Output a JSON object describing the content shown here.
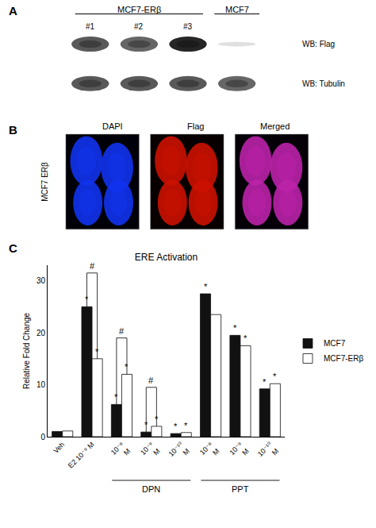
{
  "chart_data": {
    "type": "bar",
    "title": "ERE Activation",
    "ylabel": "Relative Fold Change",
    "categories": [
      "Veh",
      "E2 10⁻⁹ M",
      "10⁻⁸\nM",
      "10⁻⁹\nM",
      "10⁻¹⁰\nM",
      "10⁻⁸\nM",
      "10⁻⁹\nM",
      "10⁻¹⁰\nM"
    ],
    "series": [
      {
        "name": "MCF7",
        "color": "#111111",
        "values": [
          1.0,
          25.0,
          6.2,
          0.9,
          0.6,
          27.5,
          19.5,
          9.2
        ]
      },
      {
        "name": "MCF7-ERβ",
        "color": "#ffffff",
        "values": [
          1.1,
          15.0,
          12.0,
          2.0,
          0.8,
          23.5,
          17.5,
          10.2
        ]
      }
    ],
    "ylim": [
      0,
      33
    ],
    "yticks": [
      0,
      10,
      20,
      30
    ],
    "grid": false,
    "legend": "right",
    "annotations": [
      {
        "text": "A"
      },
      {
        "text": "MCF7-ERβ"
      },
      {
        "text": "MCF7"
      },
      {
        "text": "#1"
      },
      {
        "text": "#2"
      },
      {
        "text": "#3"
      },
      {
        "text": "WB: Flag"
      },
      {
        "text": "WB: Tubulin"
      },
      {
        "text": "B"
      },
      {
        "text": "DAPI"
      },
      {
        "text": "Flag"
      },
      {
        "text": "Merged"
      },
      {
        "text": "MCF7 ERβ"
      },
      {
        "text": "C"
      },
      {
        "text": "DPN",
        "x": 3
      },
      {
        "text": "PPT",
        "x": 6
      },
      {
        "text": "#",
        "x": 1,
        "y": 31.5
      },
      {
        "text": "#",
        "x": 2,
        "y": 19.0
      },
      {
        "text": "#",
        "x": 3,
        "y": 9.5
      },
      {
        "text": "*",
        "x": 1,
        "series": "MCF7"
      },
      {
        "text": "*",
        "x": 2,
        "series": "MCF7"
      },
      {
        "text": "*",
        "x": 3,
        "series": "MCF7"
      },
      {
        "text": "*",
        "x": 4,
        "series": "MCF7"
      },
      {
        "text": "*",
        "x": 5,
        "series": "MCF7"
      },
      {
        "text": "*",
        "x": 6,
        "series": "MCF7"
      },
      {
        "text": "*",
        "x": 7,
        "series": "MCF7"
      },
      {
        "text": "*",
        "x": 1,
        "series": "MCF7-ERβ"
      },
      {
        "text": "*",
        "x": 2,
        "series": "MCF7-ERβ"
      },
      {
        "text": "*",
        "x": 3,
        "series": "MCF7-ERβ"
      },
      {
        "text": "*",
        "x": 4,
        "series": "MCF7-ERβ"
      },
      {
        "text": "*",
        "x": 6,
        "series": "MCF7-ERβ"
      },
      {
        "text": "*",
        "x": 7,
        "series": "MCF7-ERβ"
      }
    ]
  }
}
